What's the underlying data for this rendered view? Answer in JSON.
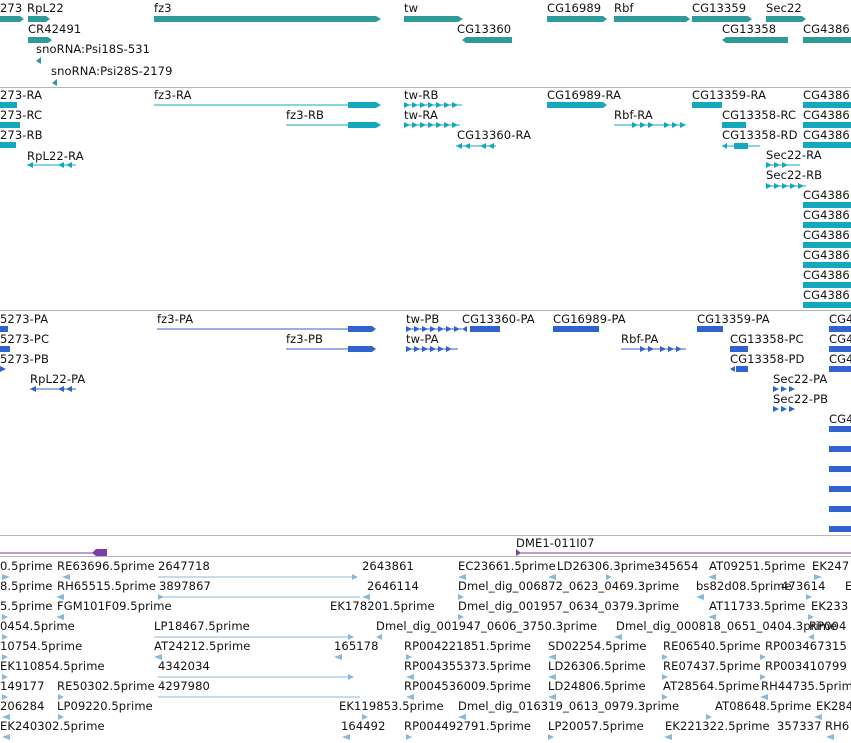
{
  "colors": {
    "gene": "#2f9a9a",
    "mrna": "#14a8be",
    "cds": "#2f63cf",
    "est": "#88b9dc",
    "bac": "#7b3fa5",
    "separator": "#b5b5b5"
  },
  "tracks": {
    "gene_span": {
      "labels": [
        "273",
        "RpL22",
        "fz3",
        "tw",
        "CG16989",
        "Rbf",
        "CG13359",
        "Sec22",
        "CR42491",
        "CG13360",
        "CG13358",
        "CG4386",
        "snoRNA:Psi18S-531",
        "snoRNA:Psi28S-2179"
      ]
    },
    "transcripts": {
      "labels": [
        "273-RA",
        "fz3-RA",
        "tw-RB",
        "CG16989-RA",
        "CG13359-RA",
        "CG4386",
        "273-RC",
        "fz3-RB",
        "tw-RA",
        "Rbf-RA",
        "CG13358-RC",
        "CG4386",
        "273-RB",
        "CG13360-RA",
        "CG13358-RD",
        "CG4386",
        "RpL22-RA",
        "Sec22-RA",
        "Sec22-RB",
        "CG4386",
        "CG4386",
        "CG4386",
        "CG4386",
        "CG4386",
        "CG4386"
      ]
    },
    "proteins": {
      "labels": [
        "5273-PA",
        "fz3-PA",
        "tw-PB",
        "CG13360-PA",
        "CG16989-PA",
        "CG13359-PA",
        "CG4",
        "5273-PC",
        "fz3-PB",
        "tw-PA",
        "Rbf-PA",
        "CG13358-PC",
        "CG4",
        "5273-PB",
        "CG13358-PD",
        "CG4",
        "RpL22-PA",
        "Sec22-PA",
        "Sec22-PB",
        "CG4"
      ]
    },
    "bac": {
      "label": "DME1-011I07"
    },
    "est": {
      "labels": [
        "0.5prime",
        "RE63696.5prime",
        "2647718",
        "2643861",
        "EC23661.5prime",
        "LD26306.3prime",
        "345654",
        "AT09251.5prime",
        "EK247",
        "8.5prime",
        "RH65515.5prime",
        "3897867",
        "2646114",
        "Dmel_dig_006872_0623_0469.3prime",
        "bs82d08.5prime",
        "473614",
        "E",
        "5.5prime",
        "FGM101F09.5prime",
        "EK178201.5prime",
        "Dmel_dig_001957_0634_0379.3prime",
        "AT11733.5prime",
        "EK233",
        "0454.5prime",
        "LP18467.5prime",
        "Dmel_dig_001947_0606_3750.3prime",
        "Dmel_dig_000818_0651_0404.3prime",
        "RP004",
        "10754.5prime",
        "AT24212.5prime",
        "165178",
        "RP004221851.5prime",
        "SD02254.5prime",
        "RE06540.5prime",
        "RP003467315",
        "EK110854.5prime",
        "4342034",
        "RP004355373.5prime",
        "LD26306.5prime",
        "RE07437.5prime",
        "RP003410799",
        "149177",
        "RE50302.5prime",
        "4297980",
        "RP004536009.5prime",
        "LD24806.5prime",
        "AT28564.5prime",
        "RH44735.5prime",
        "206284",
        "LP09220.5prime",
        "EK119853.5prime",
        "Dmel_dig_016319_0613_0979.3prime",
        "AT08648.5prime",
        "EK284",
        "EK240302.5prime",
        "164492",
        "RP004492791.5prime",
        "LP20057.5prime",
        "EK221322.5prime",
        "357337",
        "RH6"
      ]
    }
  }
}
